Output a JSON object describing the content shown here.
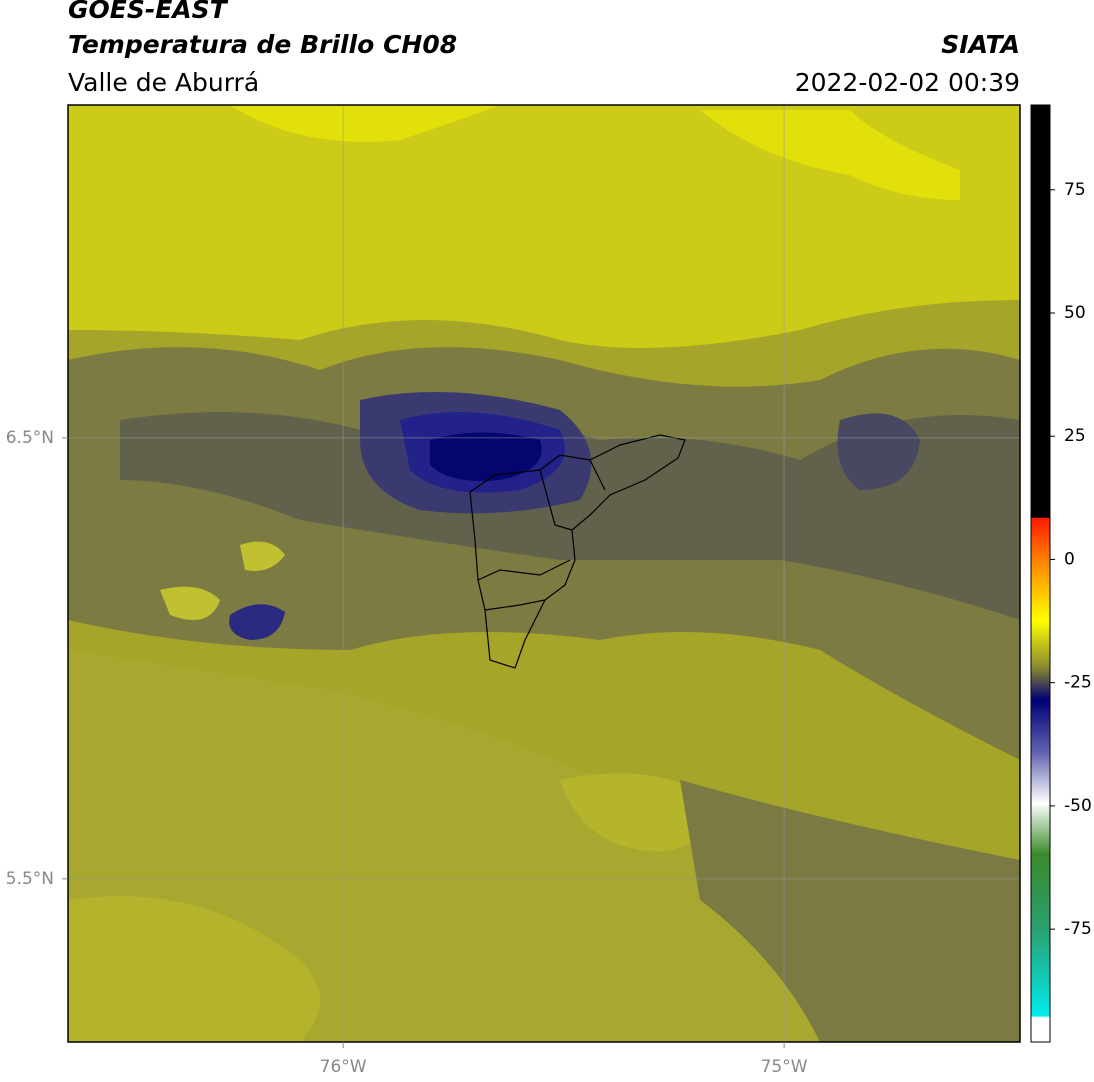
{
  "header": {
    "title": "GOES-EAST",
    "subtitle": "Temperatura de Brillo CH08",
    "region": "Valle de Aburrá",
    "source": "SIATA",
    "datetime": "2022-02-02 00:39"
  },
  "map": {
    "xlim": [
      -76.624,
      -74.465
    ],
    "ylim": [
      5.13,
      7.255
    ],
    "xticks": [
      {
        "value": -76,
        "label": "76°W"
      },
      {
        "value": -75,
        "label": "75°W"
      }
    ],
    "yticks": [
      {
        "value": 6.5,
        "label": "6.5°N"
      },
      {
        "value": 5.5,
        "label": "5.5°N"
      }
    ],
    "grid": true
  },
  "colorbar": {
    "lim": [
      -97.9,
      92.2
    ],
    "ticks": [
      75,
      50,
      25,
      0,
      -25,
      -50,
      -75
    ]
  }
}
